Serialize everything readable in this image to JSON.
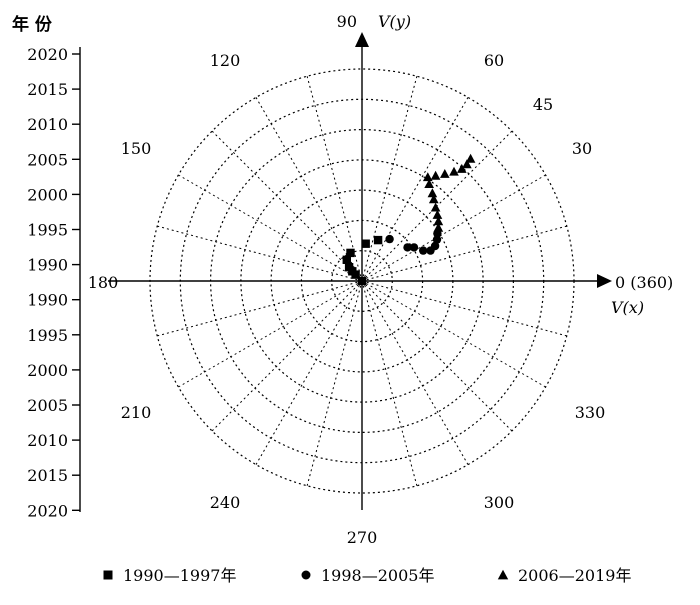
{
  "chart_data": {
    "type": "scatter",
    "coordinate_system": "polar",
    "title": "",
    "y_axis_title": "年 份",
    "y_axis_ticks_upper": [
      "2020",
      "2015",
      "2010",
      "2005",
      "2000",
      "1995",
      "1990"
    ],
    "y_axis_ticks_lower": [
      "1990",
      "1995",
      "2000",
      "2005",
      "2010",
      "2015",
      "2020"
    ],
    "angle_labels": [
      {
        "deg": 0,
        "text": "0 (360)"
      },
      {
        "deg": 30,
        "text": "30"
      },
      {
        "deg": 45,
        "text": "45"
      },
      {
        "deg": 60,
        "text": "60"
      },
      {
        "deg": 90,
        "text": "90"
      },
      {
        "deg": 120,
        "text": "120"
      },
      {
        "deg": 150,
        "text": "150"
      },
      {
        "deg": 180,
        "text": "180"
      },
      {
        "deg": 210,
        "text": "210"
      },
      {
        "deg": 240,
        "text": "240"
      },
      {
        "deg": 270,
        "text": "270"
      },
      {
        "deg": 300,
        "text": "300"
      },
      {
        "deg": 330,
        "text": "330"
      }
    ],
    "axis_label_x": "V(x)",
    "axis_label_y": "V(y)",
    "radial_range": [
      1990,
      2020
    ],
    "grid": true,
    "legend_position": "bottom",
    "series": [
      {
        "name": "1990—1997年",
        "marker": "square",
        "points": [
          {
            "vx": 0,
            "vy": 0
          },
          {
            "vx": -1.4,
            "vy": 1.4
          },
          {
            "vx": -2.1,
            "vy": 2.1
          },
          {
            "vx": -2.8,
            "vy": 3.0
          },
          {
            "vx": -3.3,
            "vy": 4.6
          },
          {
            "vx": -2.5,
            "vy": 6.1
          },
          {
            "vx": 0.8,
            "vy": 8.1
          },
          {
            "vx": 3.5,
            "vy": 8.9
          }
        ]
      },
      {
        "name": "1998—2005年",
        "marker": "circle",
        "points": [
          {
            "vx": 6.0,
            "vy": 9.1
          },
          {
            "vx": 9.9,
            "vy": 7.3
          },
          {
            "vx": 11.3,
            "vy": 7.3
          },
          {
            "vx": 13.3,
            "vy": 6.6
          },
          {
            "vx": 14.9,
            "vy": 6.6
          },
          {
            "vx": 15.9,
            "vy": 7.6
          },
          {
            "vx": 16.3,
            "vy": 9.0
          },
          {
            "vx": 16.4,
            "vy": 10.3
          }
        ]
      },
      {
        "name": "2006—2019年",
        "marker": "triangle",
        "points": [
          {
            "vx": 16.6,
            "vy": 11.6
          },
          {
            "vx": 16.6,
            "vy": 13.0
          },
          {
            "vx": 16.4,
            "vy": 14.4
          },
          {
            "vx": 16.0,
            "vy": 16.0
          },
          {
            "vx": 15.6,
            "vy": 17.8
          },
          {
            "vx": 15.3,
            "vy": 19.1
          },
          {
            "vx": 14.6,
            "vy": 21.1
          },
          {
            "vx": 14.3,
            "vy": 22.6
          },
          {
            "vx": 16.0,
            "vy": 22.9
          },
          {
            "vx": 18.0,
            "vy": 23.3
          },
          {
            "vx": 20.0,
            "vy": 23.8
          },
          {
            "vx": 21.7,
            "vy": 24.4
          },
          {
            "vx": 22.8,
            "vy": 25.4
          },
          {
            "vx": 23.6,
            "vy": 26.6
          }
        ]
      }
    ]
  }
}
